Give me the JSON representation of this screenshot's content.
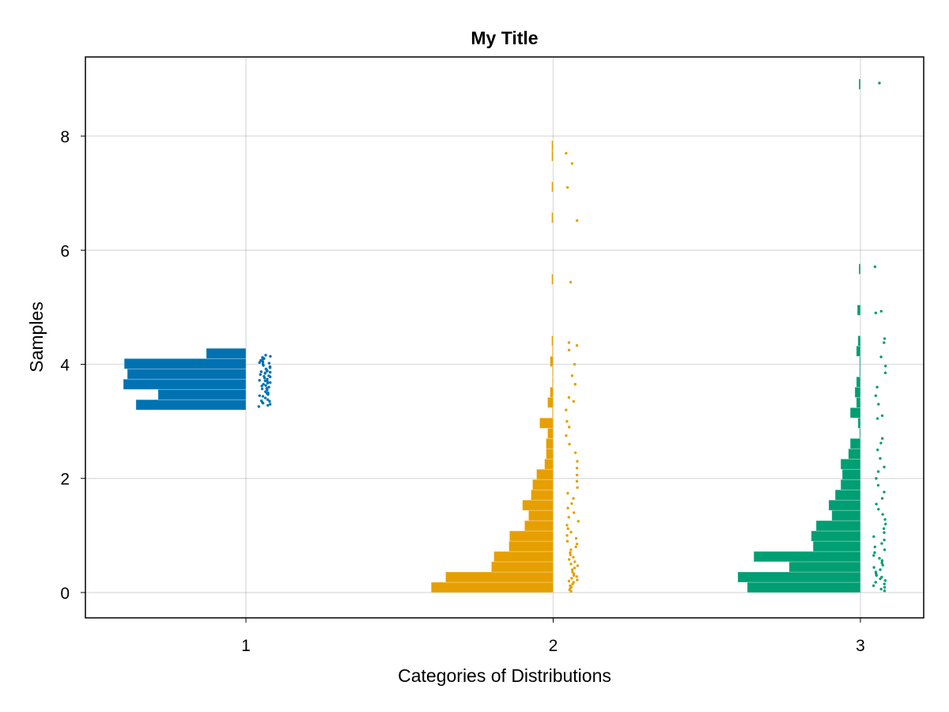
{
  "chart_data": {
    "type": "histogram+scatter (raincloud)",
    "title": "My Title",
    "xlabel": "Categories of Distributions",
    "ylabel": "Samples",
    "xlim": [
      0.4775,
      3.206
    ],
    "ylim": [
      -0.444,
      9.387
    ],
    "x_ticks": [
      "1",
      "2",
      "3"
    ],
    "y_ticks": [
      "0",
      "2",
      "4",
      "6",
      "8"
    ],
    "grid": true,
    "legend": "none",
    "bin_width": 0.18,
    "series": [
      {
        "category": 1,
        "color": "#0072B2",
        "bin_start": 3.2,
        "hist_widths": [
          0.358,
          0.286,
          0.399,
          0.386,
          0.396,
          0.129
        ],
        "samples": [
          3.26,
          3.3,
          3.33,
          3.36,
          3.38,
          3.41,
          3.44,
          3.47,
          3.5,
          3.52,
          3.55,
          3.58,
          3.6,
          3.62,
          3.65,
          3.67,
          3.7,
          3.72,
          3.74,
          3.76,
          3.78,
          3.8,
          3.82,
          3.84,
          3.86,
          3.88,
          3.9,
          3.92,
          3.94,
          3.96,
          3.98,
          4.0,
          4.02,
          4.04,
          4.06,
          4.08,
          4.1,
          4.12,
          4.14,
          4.16,
          3.28,
          3.35,
          3.45,
          3.57,
          3.63,
          3.71,
          3.79,
          3.87,
          3.95,
          4.03,
          4.11,
          3.32,
          3.49,
          3.68,
          3.85,
          4.07
        ]
      },
      {
        "category": 2,
        "color": "#E69F00",
        "bin_start": 0.0,
        "hist_widths": [
          0.397,
          0.35,
          0.201,
          0.193,
          0.144,
          0.142,
          0.093,
          0.08,
          0.1,
          0.072,
          0.067,
          0.054,
          0.028,
          0.023,
          0.023,
          0.018,
          0.044,
          0.003,
          0.018,
          0.01,
          0.003,
          0.003,
          0.01,
          0.003,
          0.005,
          0,
          0,
          0,
          0,
          0,
          0.005,
          0,
          0,
          0,
          0,
          0,
          0.005,
          0,
          0,
          0.005,
          0,
          0,
          0.005,
          0.005
        ],
        "samples": [
          0.02,
          0.05,
          0.08,
          0.1,
          0.12,
          0.15,
          0.18,
          0.2,
          0.22,
          0.25,
          0.28,
          0.3,
          0.33,
          0.36,
          0.4,
          0.43,
          0.47,
          0.5,
          0.54,
          0.58,
          0.62,
          0.66,
          0.7,
          0.75,
          0.8,
          0.85,
          0.9,
          0.95,
          1.0,
          1.06,
          1.12,
          1.18,
          1.25,
          1.32,
          1.4,
          1.48,
          1.56,
          1.65,
          1.74,
          1.84,
          1.95,
          2.06,
          2.18,
          2.3,
          2.45,
          2.6,
          2.75,
          2.9,
          3.0,
          3.2,
          3.35,
          3.42,
          3.65,
          3.8,
          4.0,
          4.25,
          4.33,
          4.38,
          5.44,
          6.52,
          7.1,
          7.52,
          7.7
        ]
      },
      {
        "category": 3,
        "color": "#009E73",
        "bin_start": 0.0,
        "hist_widths": [
          0.368,
          0.399,
          0.232,
          0.347,
          0.154,
          0.16,
          0.144,
          0.093,
          0.103,
          0.082,
          0.064,
          0.059,
          0.064,
          0.039,
          0.033,
          0.003,
          0.008,
          0.033,
          0.013,
          0.018,
          0.013,
          0.003,
          0.003,
          0.013,
          0.008,
          0,
          0,
          0.01,
          0,
          0,
          0,
          0.005,
          0,
          0,
          0,
          0,
          0,
          0,
          0,
          0,
          0,
          0,
          0,
          0,
          0,
          0,
          0,
          0,
          0,
          0.005
        ],
        "samples": [
          0.03,
          0.06,
          0.09,
          0.12,
          0.15,
          0.18,
          0.21,
          0.24,
          0.27,
          0.3,
          0.33,
          0.36,
          0.4,
          0.44,
          0.48,
          0.52,
          0.56,
          0.6,
          0.65,
          0.7,
          0.75,
          0.8,
          0.86,
          0.92,
          0.98,
          1.05,
          1.12,
          1.2,
          1.28,
          1.37,
          1.46,
          1.55,
          1.65,
          1.76,
          1.88,
          2.0,
          2.12,
          2.2,
          2.35,
          2.5,
          2.62,
          2.7,
          3.05,
          3.1,
          3.3,
          3.45,
          3.6,
          3.85,
          3.97,
          4.13,
          4.38,
          4.45,
          4.9,
          4.93,
          5.71,
          8.93
        ]
      }
    ]
  }
}
